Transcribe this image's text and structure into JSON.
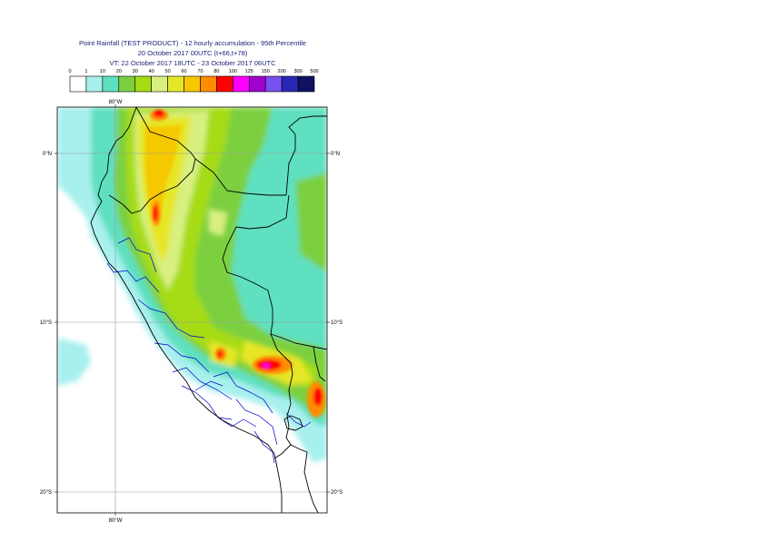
{
  "header": {
    "line1": "Point Rainfall (TEST PRODUCT) - 12 hourly accumulation - 95th Percentile",
    "line2": "20 October 2017 00UTC (t+66,t+78)",
    "line3": "VT: 22 October 2017 18UTC - 23 October 2017 06UTC"
  },
  "legend": {
    "thresholds": [
      "0",
      "1",
      "10",
      "20",
      "30",
      "40",
      "50",
      "60",
      "70",
      "80",
      "100",
      "125",
      "150",
      "200",
      "300",
      "500"
    ],
    "colors": [
      "#ffffff",
      "#a8f0ee",
      "#5ee0c0",
      "#7cd040",
      "#a6dc14",
      "#d8f080",
      "#e6e628",
      "#f5c800",
      "#ff8c00",
      "#ff0000",
      "#ff00ff",
      "#a000d0",
      "#7a50f0",
      "#2828b4",
      "#101060"
    ]
  },
  "map": {
    "lat_labels": [
      "0°N",
      "10°S",
      "20°S"
    ],
    "lon_labels": [
      "80°W"
    ],
    "land_color": "#ffffff",
    "border_color": "#000000",
    "region_border_color": "#0000c8"
  }
}
